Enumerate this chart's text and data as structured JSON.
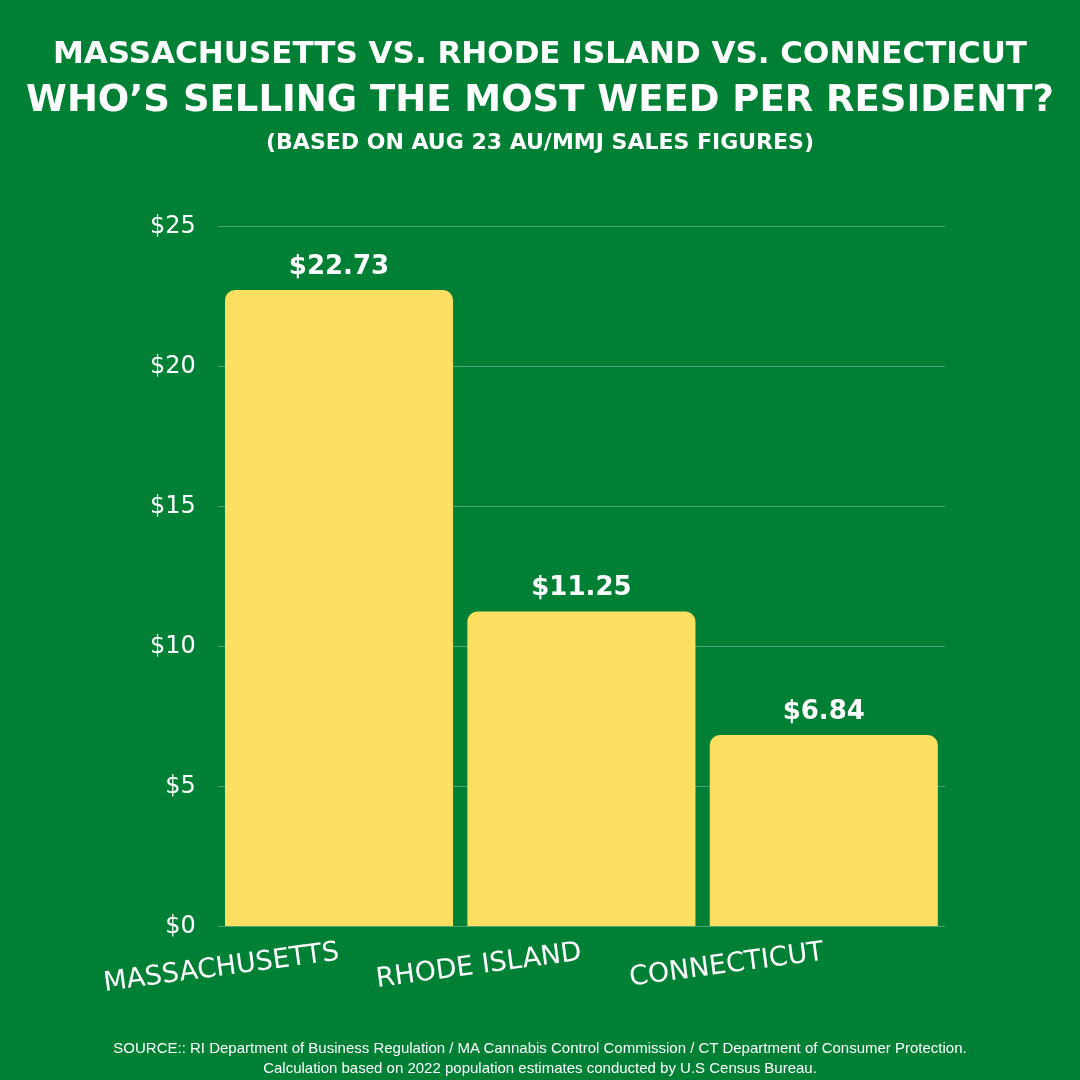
{
  "chart_data": {
    "type": "bar",
    "title": "MASSACHUSETTS VS. RHODE ISLAND VS. CONNECTICUT\nWHO’S SELLING THE MOST WEED PER RESIDENT?",
    "subtitle": "(BASED ON AUG 23 AU/MMJ SALES FIGURES)",
    "categories": [
      "MASSACHUSETTS",
      "RHODE ISLAND",
      "CONNECTICUT"
    ],
    "values": [
      22.73,
      11.25,
      6.84
    ],
    "color": "#fddf62",
    "value_labels": [
      "$22.73",
      "$11.25",
      "$6.84"
    ],
    "ylim": [
      0,
      25
    ],
    "yticks": [
      {
        "value": 0,
        "label": "$0"
      },
      {
        "value": 5,
        "label": "$5"
      },
      {
        "value": 10,
        "label": "$10"
      },
      {
        "value": 15,
        "label": "$15"
      },
      {
        "value": 20,
        "label": "$20"
      },
      {
        "value": 25,
        "label": "$25"
      }
    ],
    "grid": "y",
    "legend": false,
    "annotations": [
      "SOURCE:: RI Department of Business Regulation / MA Cannabis Control Commission / CT Department of Consumer Protection.",
      "Calculation based on 2022 population estimates conducted by U.S Census Bureau."
    ]
  }
}
